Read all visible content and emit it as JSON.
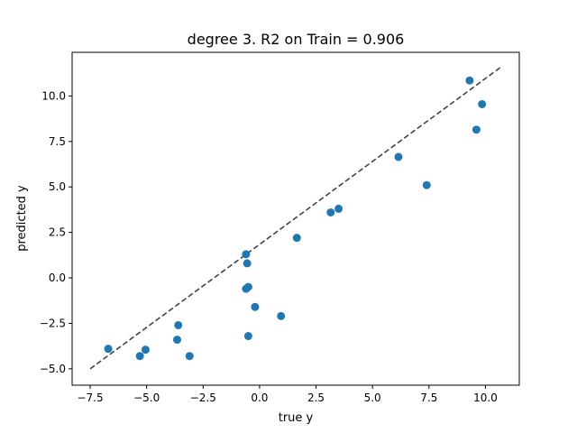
{
  "chart_data": {
    "type": "scatter",
    "title": "degree 3. R2 on Train = 0.906",
    "xlabel": "true y",
    "ylabel": "predicted y",
    "xlim": [
      -8.3,
      11.5
    ],
    "ylim": [
      -5.9,
      12.4
    ],
    "xticks": [
      -7.5,
      -5.0,
      -2.5,
      0.0,
      2.5,
      5.0,
      7.5,
      10.0
    ],
    "xtick_labels": [
      "−7.5",
      "−5.0",
      "−2.5",
      "0.0",
      "2.5",
      "5.0",
      "7.5",
      "10.0"
    ],
    "yticks": [
      -5.0,
      -2.5,
      0.0,
      2.5,
      5.0,
      7.5,
      10.0
    ],
    "ytick_labels": [
      "−5.0",
      "−2.5",
      "0.0",
      "2.5",
      "5.0",
      "7.5",
      "10.0"
    ],
    "grid": false,
    "point_color": "#1f77b4",
    "reference_line": {
      "x": [
        -7.5,
        10.7
      ],
      "y": [
        -5.0,
        11.6
      ],
      "color": "#444444",
      "style": "dashed"
    },
    "points": [
      {
        "x": -6.7,
        "y": -3.9
      },
      {
        "x": -5.3,
        "y": -4.3
      },
      {
        "x": -5.05,
        "y": -3.95
      },
      {
        "x": -3.65,
        "y": -3.4
      },
      {
        "x": -3.6,
        "y": -2.6
      },
      {
        "x": -3.1,
        "y": -4.3
      },
      {
        "x": -0.6,
        "y": 1.3
      },
      {
        "x": -0.55,
        "y": 0.8
      },
      {
        "x": -0.6,
        "y": -0.6
      },
      {
        "x": -0.5,
        "y": -0.5
      },
      {
        "x": -0.5,
        "y": -3.2
      },
      {
        "x": -0.2,
        "y": -1.6
      },
      {
        "x": 0.95,
        "y": -2.1
      },
      {
        "x": 1.65,
        "y": 2.2
      },
      {
        "x": 3.15,
        "y": 3.6
      },
      {
        "x": 3.5,
        "y": 3.8
      },
      {
        "x": 6.15,
        "y": 6.65
      },
      {
        "x": 7.4,
        "y": 5.1
      },
      {
        "x": 9.3,
        "y": 10.85
      },
      {
        "x": 9.6,
        "y": 8.15
      },
      {
        "x": 9.85,
        "y": 9.55
      }
    ]
  }
}
